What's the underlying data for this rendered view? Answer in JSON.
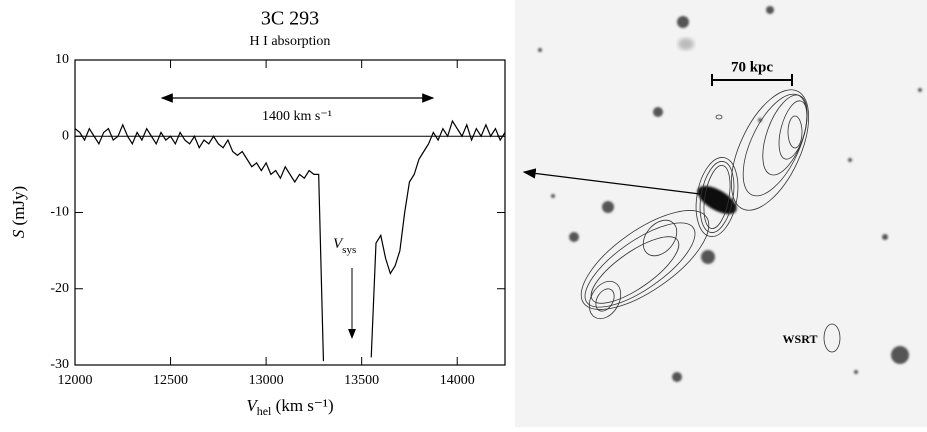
{
  "chart_data": {
    "type": "line",
    "title": "3C 293",
    "subtitle": "H I absorption",
    "y_label": {
      "main": "S",
      "unit": " (mJy)"
    },
    "x_label": {
      "main": "V",
      "sub": "hel",
      "unit": " (km s⁻¹)"
    },
    "annotations": {
      "width": "1400 km s⁻¹",
      "vsys": {
        "main": "V",
        "sub": "sys"
      }
    },
    "image_labels": {
      "scale": "70 kpc",
      "beam": "WSRT"
    },
    "color": "#000000",
    "x": [
      12000,
      12025,
      12050,
      12075,
      12100,
      12125,
      12150,
      12175,
      12200,
      12225,
      12250,
      12275,
      12300,
      12325,
      12350,
      12375,
      12400,
      12425,
      12450,
      12475,
      12500,
      12525,
      12550,
      12575,
      12600,
      12625,
      12650,
      12675,
      12700,
      12725,
      12750,
      12775,
      12800,
      12825,
      12850,
      12875,
      12900,
      12925,
      12950,
      12975,
      13000,
      13025,
      13050,
      13075,
      13100,
      13125,
      13150,
      13175,
      13200,
      13225,
      13250,
      13275,
      13300,
      13325,
      13350,
      13375,
      13400,
      13425,
      13450,
      13475,
      13500,
      13525,
      13550,
      13575,
      13600,
      13625,
      13650,
      13675,
      13700,
      13725,
      13750,
      13775,
      13800,
      13825,
      13850,
      13875,
      13900,
      13925,
      13950,
      13975,
      14000,
      14025,
      14050,
      14075,
      14100,
      14125,
      14150,
      14175,
      14200,
      14225,
      14250
    ],
    "values": [
      1,
      0.5,
      -0.5,
      1,
      0,
      -1,
      0.5,
      1,
      -0.5,
      0,
      1.5,
      0,
      -1,
      0.5,
      -0.5,
      1,
      0,
      -1,
      0.5,
      -0.5,
      0,
      -1,
      0.5,
      -0.5,
      -1,
      0,
      -1.5,
      -0.5,
      -1,
      0,
      -1,
      -1.5,
      -0.5,
      -2,
      -2.5,
      -2,
      -3,
      -4,
      -3.5,
      -4.5,
      -3.5,
      -5,
      -4.5,
      -5.5,
      -4,
      -5,
      -6,
      -5,
      -5.5,
      -4.5,
      -5,
      -5,
      -29.5,
      null,
      null,
      null,
      null,
      null,
      null,
      null,
      null,
      null,
      -29,
      -14,
      -13,
      -16,
      -18,
      -17,
      -15,
      -10,
      -6,
      -5,
      -3,
      -2,
      -1,
      0.5,
      -0.5,
      1,
      0,
      2,
      1,
      0,
      1.5,
      -0.5,
      1,
      0,
      1.5,
      0,
      1,
      -0.5,
      0.5
    ],
    "xlim": [
      12000,
      14250
    ],
    "ylim": [
      -30,
      10
    ],
    "xticks": [
      12000,
      12500,
      13000,
      13500,
      14000
    ],
    "yticks": [
      10,
      0,
      -10,
      -20,
      -30
    ]
  }
}
